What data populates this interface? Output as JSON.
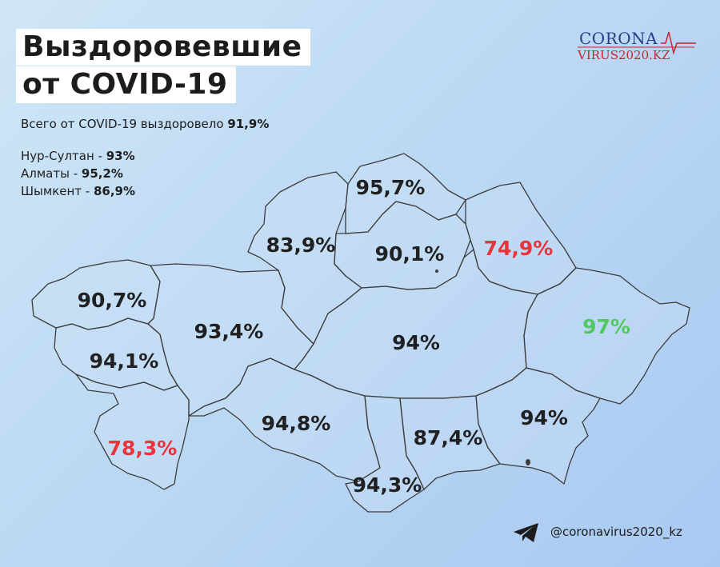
{
  "header": {
    "title_line1": "Выздоровевшие",
    "title_line2": "от COVID-19",
    "subtitle_prefix": "Всего от COVID-19 выздоровело ",
    "subtitle_value": "91,9%"
  },
  "cities": [
    {
      "label": "Нур-Султан - ",
      "value": "93%"
    },
    {
      "label": "Алматы - ",
      "value": "95,2%"
    },
    {
      "label": "Шымкент - ",
      "value": "86,9%"
    }
  ],
  "logo": {
    "line1": "CORONA",
    "line2": "VIRUS2020.KZ",
    "colors": {
      "top": "#2a3d87",
      "bottom": "#c1272d"
    }
  },
  "regions": [
    {
      "name": "west-kazakhstan",
      "value": "90,7%",
      "color": "#202020"
    },
    {
      "name": "atyrau",
      "value": "94,1%",
      "color": "#202020"
    },
    {
      "name": "mangystau",
      "value": "78,3%",
      "color": "#e8343a"
    },
    {
      "name": "aktobe",
      "value": "93,4%",
      "color": "#202020"
    },
    {
      "name": "kostanay",
      "value": "83,9%",
      "color": "#202020"
    },
    {
      "name": "north-kazakhstan",
      "value": "95,7%",
      "color": "#202020"
    },
    {
      "name": "akmola",
      "value": "90,1%",
      "color": "#202020"
    },
    {
      "name": "pavlodar",
      "value": "74,9%",
      "color": "#e8343a"
    },
    {
      "name": "karaganda",
      "value": "94%",
      "color": "#202020"
    },
    {
      "name": "east-kazakhstan",
      "value": "97%",
      "color": "#52c860"
    },
    {
      "name": "kyzylorda",
      "value": "94,8%",
      "color": "#202020"
    },
    {
      "name": "turkestan",
      "value": "94,3%",
      "color": "#202020"
    },
    {
      "name": "zhambyl",
      "value": "87,4%",
      "color": "#202020"
    },
    {
      "name": "almaty-region",
      "value": "94%",
      "color": "#202020"
    }
  ],
  "footer": {
    "handle": "@coronavirus2020_kz",
    "icon": "telegram-icon"
  }
}
